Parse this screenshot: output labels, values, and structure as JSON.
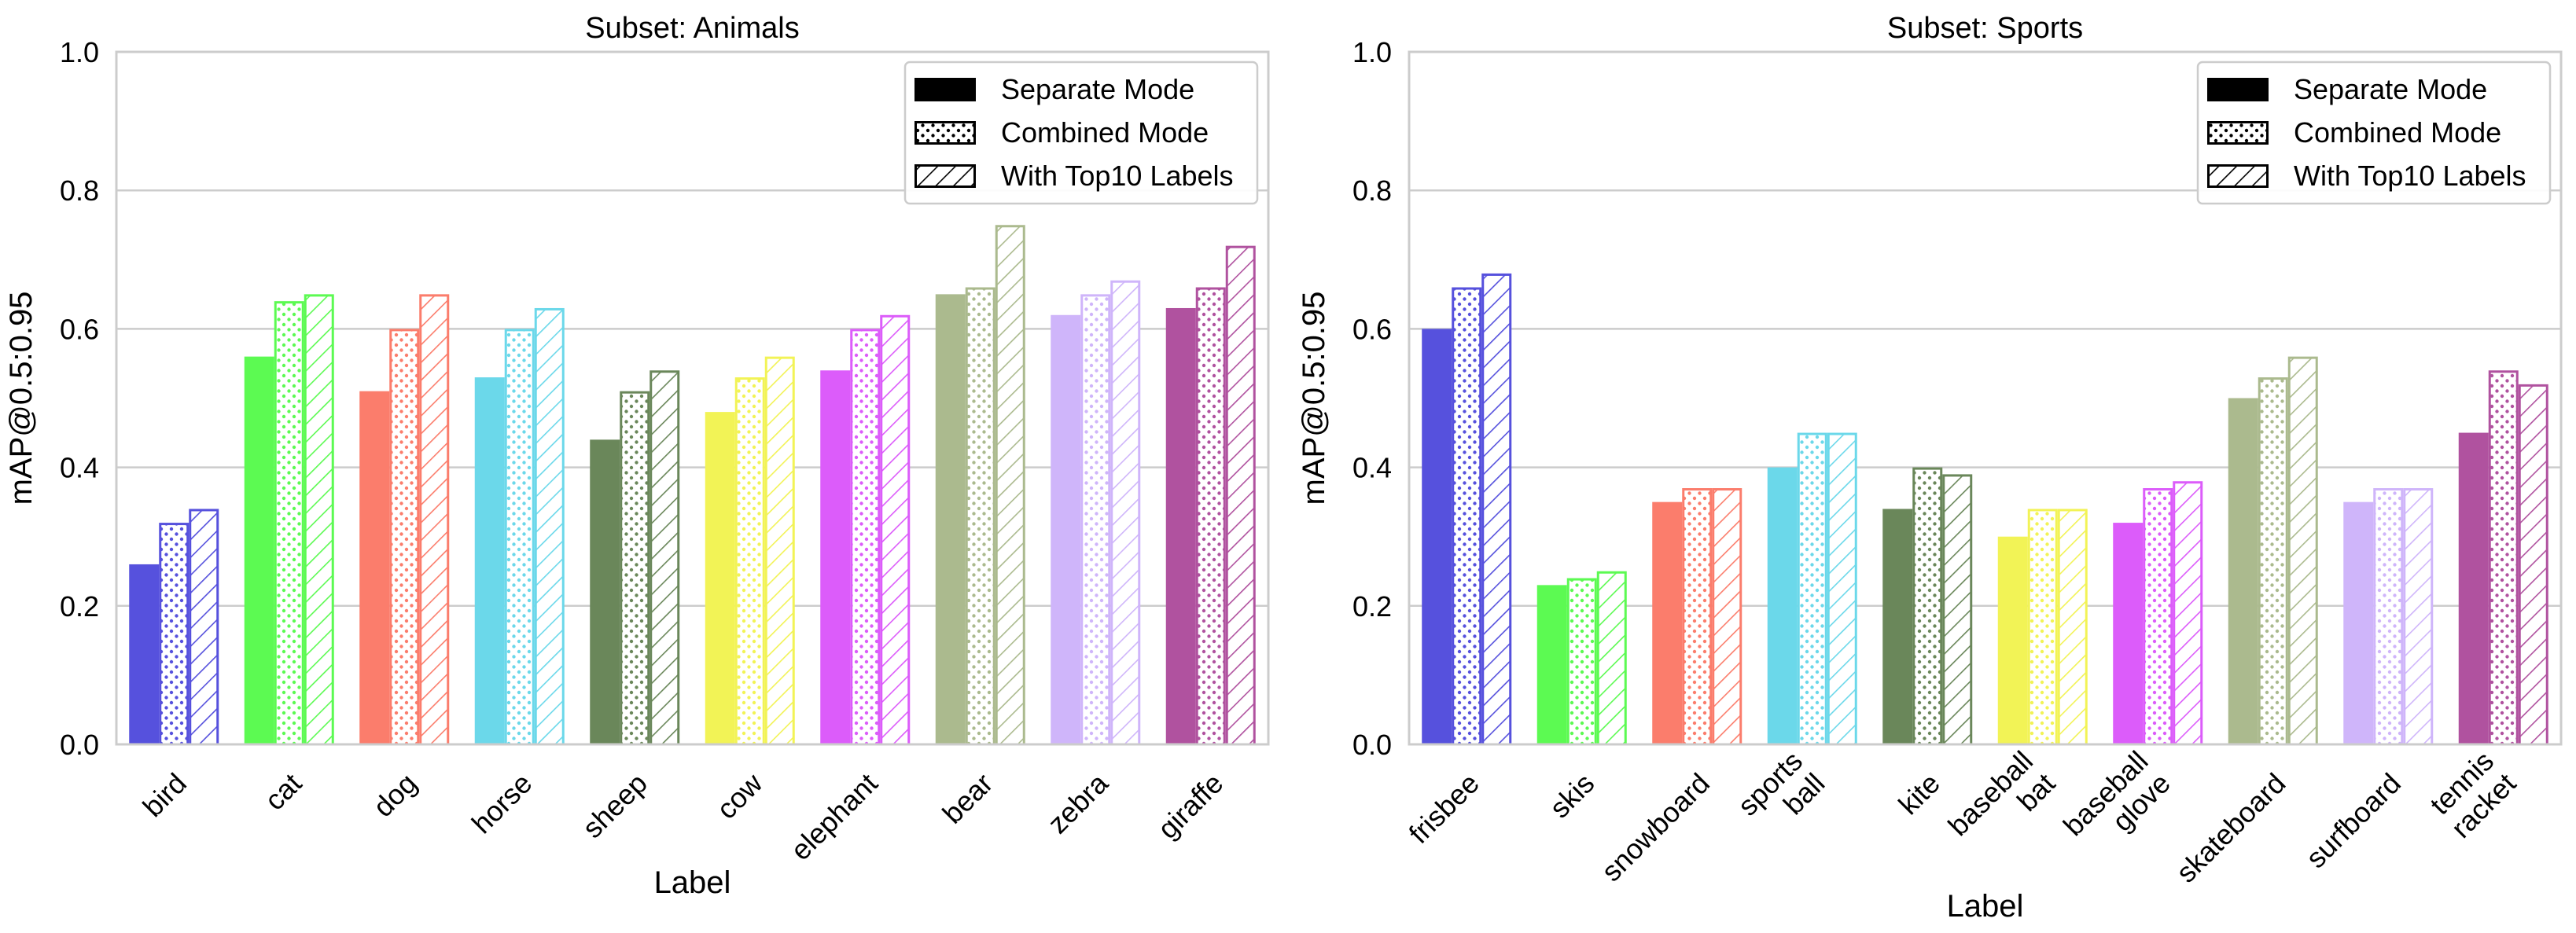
{
  "chart_data": [
    {
      "type": "bar",
      "title": "Subset: Animals",
      "xlabel": "Label",
      "ylabel": "mAP@0.5:0.95",
      "ylim": [
        0,
        1.0
      ],
      "yticks": [
        "0.0",
        "0.2",
        "0.4",
        "0.6",
        "0.8",
        "1.0"
      ],
      "grid": true,
      "legend_position": "top-right",
      "categories": [
        [
          "bird"
        ],
        [
          "cat"
        ],
        [
          "dog"
        ],
        [
          "horse"
        ],
        [
          "sheep"
        ],
        [
          "cow"
        ],
        [
          "elephant"
        ],
        [
          "bear"
        ],
        [
          "zebra"
        ],
        [
          "giraffe"
        ]
      ],
      "colors": [
        "#5651dd",
        "#5cfa52",
        "#fb7d6c",
        "#6bd8ea",
        "#6a875a",
        "#f2f356",
        "#dc5cfa",
        "#abba8e",
        "#cfb5fa",
        "#b0529f"
      ],
      "series": [
        {
          "name": "Separate Mode",
          "pattern": "solid",
          "values": [
            0.26,
            0.56,
            0.51,
            0.53,
            0.44,
            0.48,
            0.54,
            0.65,
            0.62,
            0.63
          ]
        },
        {
          "name": "Combined Mode",
          "pattern": "dots",
          "values": [
            0.32,
            0.64,
            0.6,
            0.6,
            0.51,
            0.53,
            0.6,
            0.66,
            0.65,
            0.66
          ]
        },
        {
          "name": "With Top10 Labels",
          "pattern": "hatch",
          "values": [
            0.34,
            0.65,
            0.65,
            0.63,
            0.54,
            0.56,
            0.62,
            0.75,
            0.67,
            0.72
          ]
        }
      ]
    },
    {
      "type": "bar",
      "title": "Subset: Sports",
      "xlabel": "Label",
      "ylabel": "mAP@0.5:0.95",
      "ylim": [
        0,
        1.0
      ],
      "yticks": [
        "0.0",
        "0.2",
        "0.4",
        "0.6",
        "0.8",
        "1.0"
      ],
      "grid": true,
      "legend_position": "top-right",
      "categories": [
        [
          "frisbee"
        ],
        [
          "skis"
        ],
        [
          "snowboard"
        ],
        [
          "sports",
          "ball"
        ],
        [
          "kite"
        ],
        [
          "baseball",
          "bat"
        ],
        [
          "baseball",
          "glove"
        ],
        [
          "skateboard"
        ],
        [
          "surfboard"
        ],
        [
          "tennis",
          "racket"
        ]
      ],
      "colors": [
        "#5651dd",
        "#5cfa52",
        "#fb7d6c",
        "#6bd8ea",
        "#6a875a",
        "#f2f356",
        "#dc5cfa",
        "#abba8e",
        "#cfb5fa",
        "#b0529f"
      ],
      "series": [
        {
          "name": "Separate Mode",
          "pattern": "solid",
          "values": [
            0.6,
            0.23,
            0.35,
            0.4,
            0.34,
            0.3,
            0.32,
            0.5,
            0.35,
            0.45
          ]
        },
        {
          "name": "Combined Mode",
          "pattern": "dots",
          "values": [
            0.66,
            0.24,
            0.37,
            0.45,
            0.4,
            0.34,
            0.37,
            0.53,
            0.37,
            0.54
          ]
        },
        {
          "name": "With Top10 Labels",
          "pattern": "hatch",
          "values": [
            0.68,
            0.25,
            0.37,
            0.45,
            0.39,
            0.34,
            0.38,
            0.56,
            0.37,
            0.52
          ]
        }
      ]
    }
  ]
}
